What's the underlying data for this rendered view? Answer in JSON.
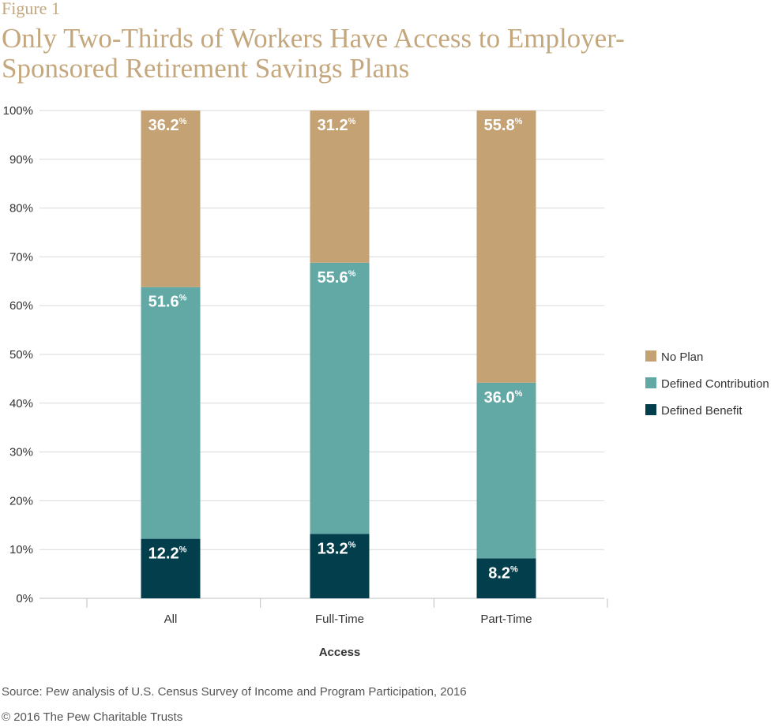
{
  "figure_label": "Figure 1",
  "title": "Only Two-Thirds of Workers Have Access to Employer-Sponsored Retirement Savings Plans",
  "source": "Source: Pew analysis of U.S. Census Survey of Income and Program Participation, 2016",
  "copyright": "© 2016 The Pew Charitable Trusts",
  "chart_data": {
    "type": "bar",
    "stacked": true,
    "categories": [
      "All",
      "Full-Time",
      "Part-Time"
    ],
    "xlabel": "Access",
    "ylabel": "",
    "ylim": [
      0,
      100
    ],
    "yticks": [
      "0%",
      "10%",
      "20%",
      "30%",
      "40%",
      "50%",
      "60%",
      "70%",
      "80%",
      "90%",
      "100%"
    ],
    "grid": true,
    "legend_position": "right",
    "series": [
      {
        "name": "Defined Benefit",
        "color": "#033e4c",
        "values": [
          12.2,
          13.2,
          8.2
        ],
        "labels": [
          "12.2",
          "13.2",
          "8.2"
        ]
      },
      {
        "name": "Defined Contribution",
        "color": "#62a8a5",
        "values": [
          51.6,
          55.6,
          36.0
        ],
        "labels": [
          "51.6",
          "55.6",
          "36.0"
        ]
      },
      {
        "name": "No Plan",
        "color": "#c4a274",
        "values": [
          36.2,
          31.2,
          55.8
        ],
        "labels": [
          "36.2",
          "31.2",
          "55.8"
        ]
      }
    ],
    "legend_order": [
      "No Plan",
      "Defined Contribution",
      "Defined Benefit"
    ],
    "label_suffix": "%"
  }
}
